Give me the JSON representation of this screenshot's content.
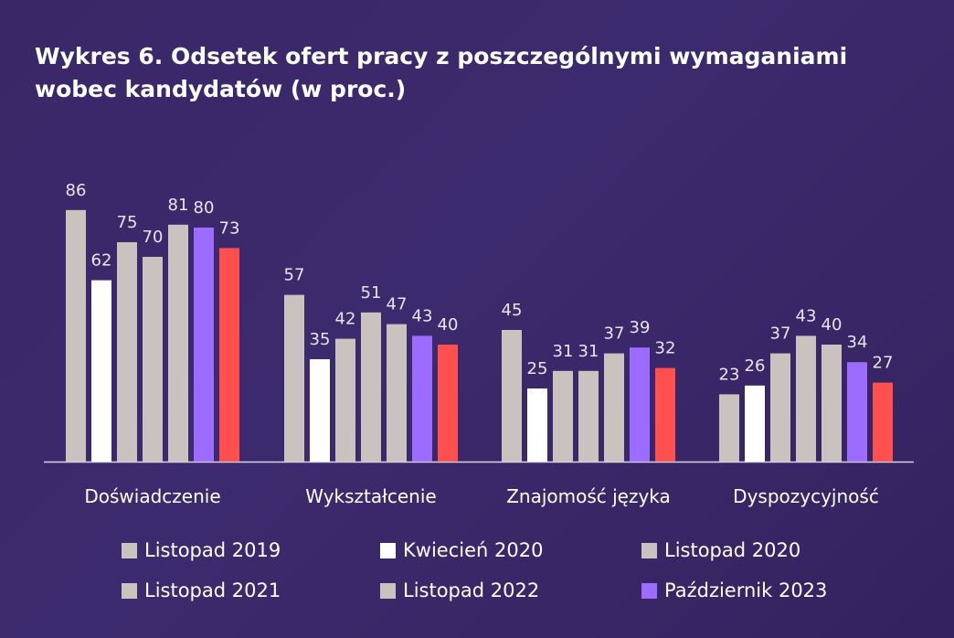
{
  "chart_data": {
    "type": "bar",
    "title": "Wykres 6. Odsetek ofert pracy z poszczególnymi wymaganiami wobec kandydatów (w proc.)",
    "categories": [
      "Doświadczenie",
      "Wykształcenie",
      "Znajomość języka",
      "Dyspozycyjność"
    ],
    "series": [
      {
        "name": "Listopad 2019",
        "color": "#c9c2bf",
        "values": [
          86,
          57,
          45,
          23
        ]
      },
      {
        "name": "Kwiecień 2020",
        "color": "#ffffff",
        "values": [
          62,
          35,
          25,
          26
        ]
      },
      {
        "name": "Listopad 2020",
        "color": "#c9c2bf",
        "values": [
          75,
          42,
          31,
          37
        ]
      },
      {
        "name": "Listopad 2021",
        "color": "#c9c2bf",
        "values": [
          70,
          51,
          31,
          43
        ]
      },
      {
        "name": "Listopad 2022",
        "color": "#c9c2bf",
        "values": [
          81,
          47,
          37,
          40
        ]
      },
      {
        "name": "Październik 2023",
        "color": "#9c6bff",
        "values": [
          80,
          43,
          39,
          34
        ]
      },
      {
        "name": "",
        "color": "#ff4f4f",
        "values": [
          73,
          40,
          32,
          27
        ]
      }
    ],
    "xlabel": "",
    "ylabel": "",
    "ylim": [
      0,
      100
    ],
    "grid": false,
    "legend_position": "bottom"
  }
}
